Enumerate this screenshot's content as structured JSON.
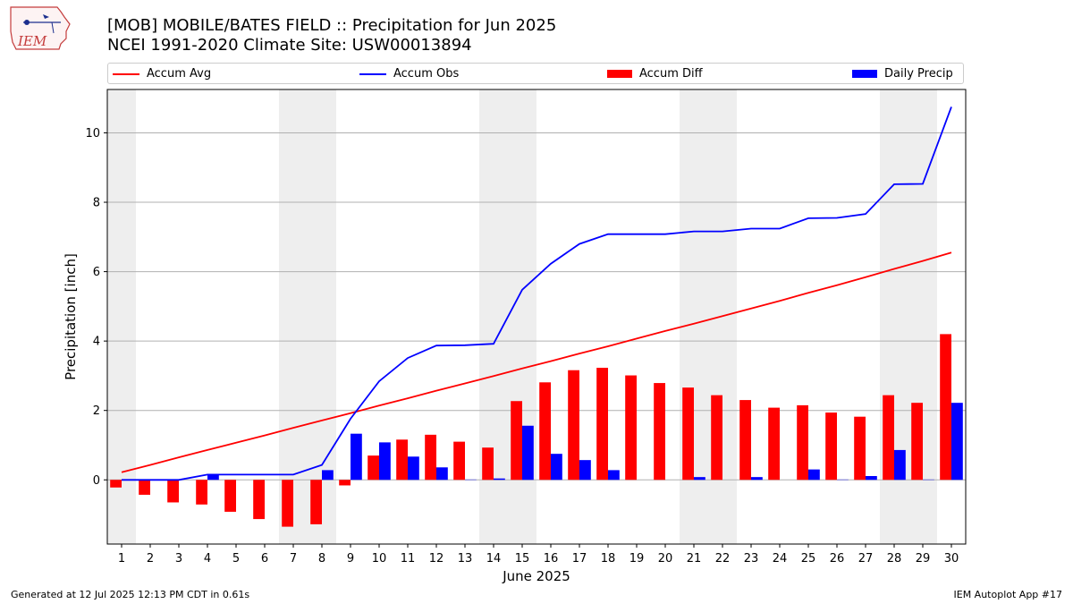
{
  "header": {
    "title_line1": "[MOB] MOBILE/BATES FIELD :: Precipitation for Jun 2025",
    "title_line2": "NCEI 1991-2020 Climate Site: USW00013894",
    "logo_text": "IEM"
  },
  "footer": {
    "left": "Generated at 12 Jul 2025 12:13 PM CDT in 0.61s",
    "right": "IEM Autoplot App #17"
  },
  "colors": {
    "avg": "#ff0000",
    "obs": "#0000ff",
    "diff": "#ff0000",
    "daily": "#0000ff",
    "weekend_band": "#eeeeee",
    "grid": "#b0b0b0"
  },
  "chart_data": {
    "type": "bar",
    "xlabel": "June 2025",
    "ylabel": "Precipitation [inch]",
    "x": [
      1,
      2,
      3,
      4,
      5,
      6,
      7,
      8,
      9,
      10,
      11,
      12,
      13,
      14,
      15,
      16,
      17,
      18,
      19,
      20,
      21,
      22,
      23,
      24,
      25,
      26,
      27,
      28,
      29,
      30
    ],
    "xlim": [
      0.5,
      30.5
    ],
    "ylim": [
      -1.85,
      11.25
    ],
    "yticks": [
      0,
      2,
      4,
      6,
      8,
      10
    ],
    "grid": "horizontal",
    "legend_position": "top",
    "shaded_days": [
      1,
      7,
      8,
      14,
      15,
      21,
      22,
      28,
      29
    ],
    "series": [
      {
        "name": "Accum Avg",
        "kind": "line",
        "values": [
          0.22,
          0.43,
          0.65,
          0.86,
          1.07,
          1.28,
          1.5,
          1.71,
          1.92,
          2.14,
          2.35,
          2.57,
          2.78,
          2.99,
          3.21,
          3.42,
          3.64,
          3.85,
          4.07,
          4.29,
          4.5,
          4.72,
          4.94,
          5.16,
          5.39,
          5.61,
          5.84,
          6.08,
          6.31,
          6.55
        ]
      },
      {
        "name": "Accum Obs",
        "kind": "line",
        "values": [
          0.0,
          0.0,
          0.0,
          0.15,
          0.15,
          0.15,
          0.15,
          0.43,
          1.76,
          2.84,
          3.51,
          3.87,
          3.88,
          3.92,
          5.48,
          6.23,
          6.8,
          7.08,
          7.08,
          7.08,
          7.16,
          7.16,
          7.24,
          7.24,
          7.54,
          7.55,
          7.66,
          8.52,
          8.53,
          10.75
        ]
      },
      {
        "name": "Accum Diff",
        "kind": "bar",
        "values": [
          -0.22,
          -0.43,
          -0.65,
          -0.71,
          -0.92,
          -1.13,
          -1.35,
          -1.28,
          -0.16,
          0.7,
          1.16,
          1.3,
          1.1,
          0.93,
          2.27,
          2.81,
          3.16,
          3.23,
          3.01,
          2.79,
          2.66,
          2.44,
          2.3,
          2.08,
          2.15,
          1.94,
          1.82,
          2.44,
          2.22,
          4.2
        ]
      },
      {
        "name": "Daily Precip",
        "kind": "bar",
        "values": [
          0.0,
          0.0,
          0.0,
          0.15,
          0.0,
          0.0,
          0.0,
          0.28,
          1.33,
          1.08,
          0.67,
          0.36,
          0.01,
          0.04,
          1.56,
          0.75,
          0.57,
          0.28,
          0.0,
          0.0,
          0.08,
          0.0,
          0.08,
          0.0,
          0.3,
          0.01,
          0.11,
          0.86,
          0.01,
          2.22
        ]
      }
    ]
  }
}
